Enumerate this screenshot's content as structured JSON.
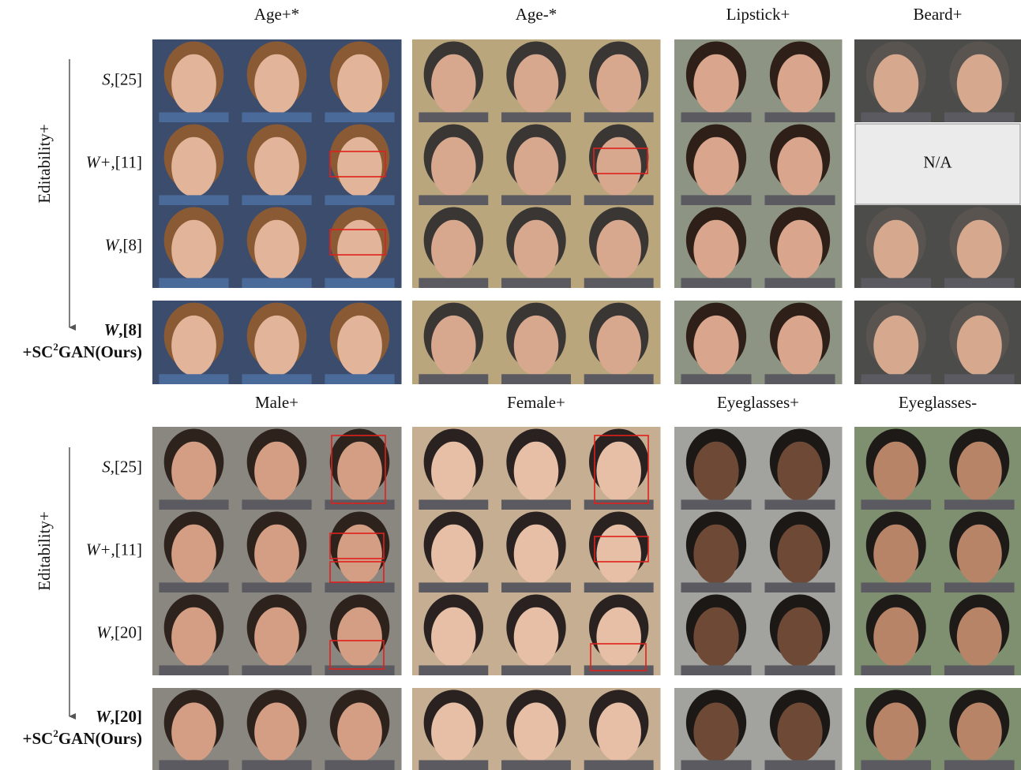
{
  "figure": {
    "side_label": "Editability+",
    "panels": [
      {
        "titles": [
          "Age+*",
          "Age-*",
          "Lipstick+",
          "Beard+"
        ],
        "rows": [
          {
            "symbol": "S",
            "ref": ",[25]"
          },
          {
            "symbol": "W+",
            "ref": ",[11]"
          },
          {
            "symbol": "W",
            "ref": ",[8]"
          },
          {
            "symbol": "W",
            "ref": ",[8]",
            "ours": {
              "pre": "+SC",
              "sup": "2",
              "post": "GAN(Ours)"
            }
          }
        ],
        "na": {
          "text": "N/A"
        }
      },
      {
        "titles": [
          "Male+",
          "Female+",
          "Eyeglasses+",
          "Eyeglasses-"
        ],
        "rows": [
          {
            "symbol": "S",
            "ref": ",[25]"
          },
          {
            "symbol": "W+",
            "ref": ",[11]"
          },
          {
            "symbol": "W",
            "ref": ",[20]"
          },
          {
            "symbol": "W",
            "ref": ",[20]",
            "ours": {
              "pre": "+SC",
              "sup": "2",
              "post": "GAN(Ours)"
            }
          }
        ]
      }
    ]
  }
}
